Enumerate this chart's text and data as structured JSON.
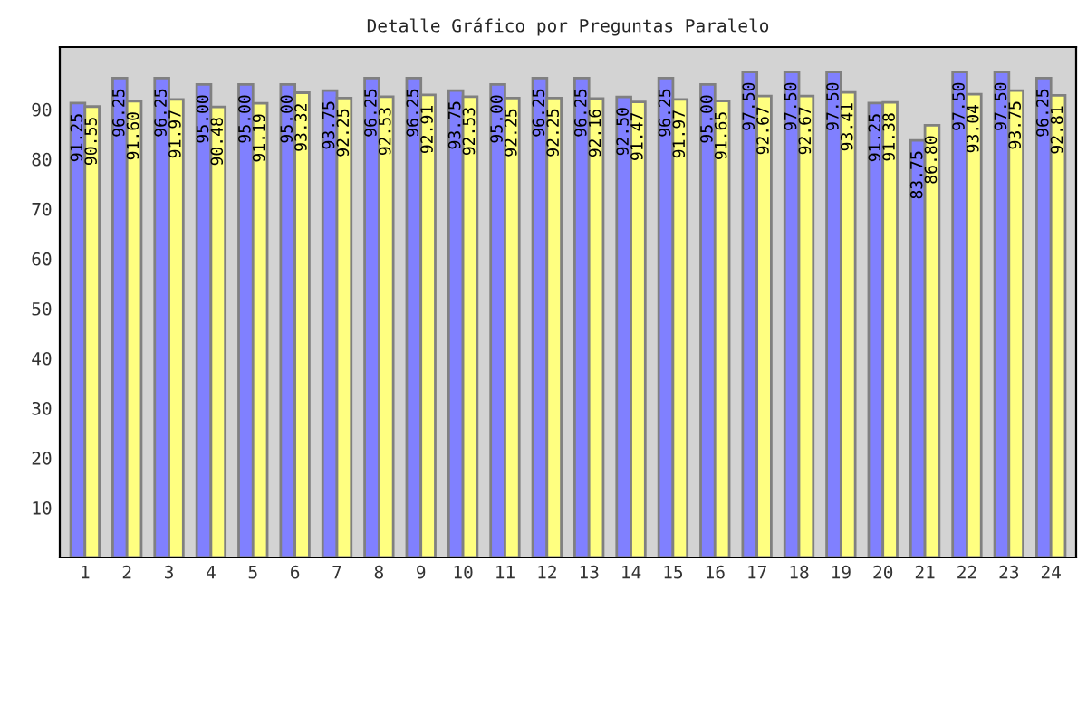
{
  "chart_data": {
    "type": "bar",
    "title": "Detalle Gráfico por Preguntas Paralelo",
    "categories": [
      "1",
      "2",
      "3",
      "4",
      "5",
      "6",
      "7",
      "8",
      "9",
      "10",
      "11",
      "12",
      "13",
      "14",
      "15",
      "16",
      "17",
      "18",
      "19",
      "20",
      "21",
      "22",
      "23",
      "24"
    ],
    "series": [
      {
        "color": "#8080ff",
        "values": [
          91.25,
          96.25,
          96.25,
          95.0,
          95.0,
          95.0,
          93.75,
          96.25,
          96.25,
          93.75,
          95.0,
          96.25,
          96.25,
          92.5,
          96.25,
          95.0,
          97.5,
          97.5,
          97.5,
          91.25,
          83.75,
          97.5,
          97.5,
          96.25
        ],
        "value_labels": [
          "91.25",
          "96.25",
          "96.25",
          "95.00",
          "95.00",
          "95.00",
          "93.75",
          "96.25",
          "96.25",
          "93.75",
          "95.00",
          "96.25",
          "96.25",
          "92.50",
          "96.25",
          "95.00",
          "97.50",
          "97.50",
          "97.50",
          "91.25",
          "83.75",
          "97.50",
          "97.50",
          "96.25"
        ]
      },
      {
        "color": "#ffff80",
        "values": [
          90.55,
          91.6,
          91.97,
          90.48,
          91.19,
          93.32,
          92.25,
          92.53,
          92.91,
          92.53,
          92.25,
          92.25,
          92.16,
          91.47,
          91.97,
          91.65,
          92.67,
          92.67,
          93.41,
          91.38,
          86.8,
          93.04,
          93.75,
          92.81
        ],
        "value_labels": [
          "90.55",
          "91.60",
          "91.97",
          "90.48",
          "91.19",
          "93.32",
          "92.25",
          "92.53",
          "92.91",
          "92.53",
          "92.25",
          "92.25",
          "92.16",
          "91.47",
          "91.97",
          "91.65",
          "92.67",
          "92.67",
          "93.41",
          "91.38",
          "86.80",
          "93.04",
          "93.75",
          "92.81"
        ]
      }
    ],
    "ylim": [
      0,
      102.5
    ],
    "yticks": [
      10,
      20,
      30,
      40,
      50,
      60,
      70,
      80,
      90
    ],
    "grid": false
  }
}
